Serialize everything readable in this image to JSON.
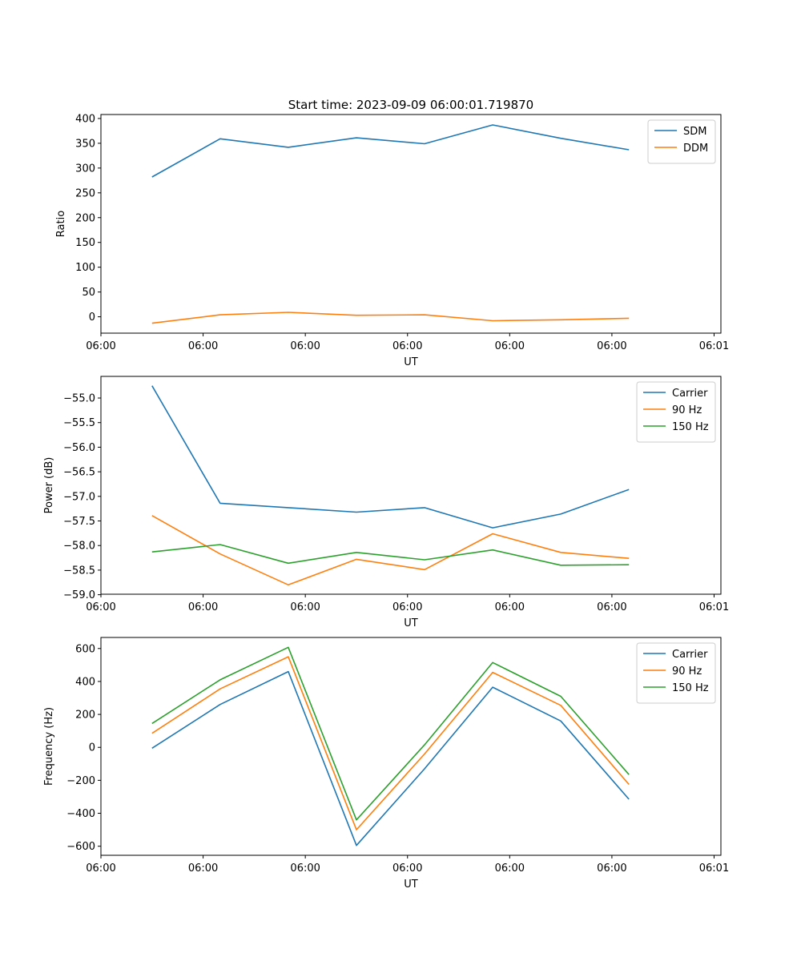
{
  "title": "Start time: 2023-09-09 06:00:01.719870",
  "colors": {
    "blue": "#1f77b4",
    "orange": "#ff7f0e",
    "green": "#2ca02c"
  },
  "x_ticks": [
    "06:00",
    "06:00",
    "06:00",
    "06:00",
    "06:00",
    "06:00",
    "06:01"
  ],
  "chart_data": [
    {
      "type": "line",
      "title": "Start time: 2023-09-09 06:00:01.719870",
      "xlabel": "UT",
      "ylabel": "Ratio",
      "xlim": [
        -0.75,
        8.35
      ],
      "ylim": [
        -33,
        408
      ],
      "yticks": [
        0,
        50,
        100,
        150,
        200,
        250,
        300,
        350,
        400
      ],
      "ytick_labels": [
        "0",
        "50",
        "100",
        "150",
        "200",
        "250",
        "300",
        "350",
        "400"
      ],
      "x": [
        0,
        1,
        2,
        3,
        4,
        5,
        6,
        7
      ],
      "series": [
        {
          "name": "SDM",
          "color": "blue",
          "values": [
            282,
            359,
            342,
            361,
            349,
            387,
            360,
            337
          ]
        },
        {
          "name": "DDM",
          "color": "orange",
          "values": [
            -13,
            4,
            9,
            3,
            4,
            -8,
            -6,
            -3
          ]
        }
      ],
      "legend": "top-right"
    },
    {
      "type": "line",
      "xlabel": "UT",
      "ylabel": "Power (dB)",
      "xlim": [
        -0.75,
        8.35
      ],
      "ylim": [
        -58.99,
        -54.56
      ],
      "yticks": [
        -59.0,
        -58.5,
        -58.0,
        -57.5,
        -57.0,
        -56.5,
        -56.0,
        -55.5,
        -55.0
      ],
      "ytick_labels": [
        "−59.0",
        "−58.5",
        "−58.0",
        "−57.5",
        "−57.0",
        "−56.5",
        "−56.0",
        "−55.5",
        "−55.0"
      ],
      "x": [
        0,
        1,
        2,
        3,
        4,
        5,
        6,
        7
      ],
      "series": [
        {
          "name": "Carrier",
          "color": "blue",
          "values": [
            -54.75,
            -57.14,
            -57.23,
            -57.32,
            -57.23,
            -57.64,
            -57.36,
            -56.86
          ]
        },
        {
          "name": "90 Hz",
          "color": "orange",
          "values": [
            -57.39,
            -58.17,
            -58.8,
            -58.28,
            -58.49,
            -57.76,
            -58.14,
            -58.26
          ]
        },
        {
          "name": "150 Hz",
          "color": "green",
          "values": [
            -58.13,
            -57.98,
            -58.36,
            -58.14,
            -58.29,
            -58.09,
            -58.4,
            -58.39
          ]
        }
      ],
      "legend": "top-right"
    },
    {
      "type": "line",
      "xlabel": "UT",
      "ylabel": "Frequency (Hz)",
      "xlim": [
        -0.75,
        8.35
      ],
      "ylim": [
        -655,
        667
      ],
      "yticks": [
        -600,
        -400,
        -200,
        0,
        200,
        400,
        600
      ],
      "ytick_labels": [
        "−600",
        "−400",
        "−200",
        "0",
        "200",
        "400",
        "600"
      ],
      "x": [
        0,
        1,
        2,
        3,
        4,
        5,
        6,
        7
      ],
      "series": [
        {
          "name": "Carrier",
          "color": "blue",
          "values": [
            -5,
            260,
            460,
            -595,
            -130,
            365,
            160,
            -315
          ]
        },
        {
          "name": "90 Hz",
          "color": "orange",
          "values": [
            85,
            355,
            550,
            -500,
            -40,
            455,
            255,
            -225
          ]
        },
        {
          "name": "150 Hz",
          "color": "green",
          "values": [
            145,
            410,
            607,
            -440,
            15,
            515,
            310,
            -165
          ]
        }
      ],
      "legend": "top-right"
    }
  ]
}
